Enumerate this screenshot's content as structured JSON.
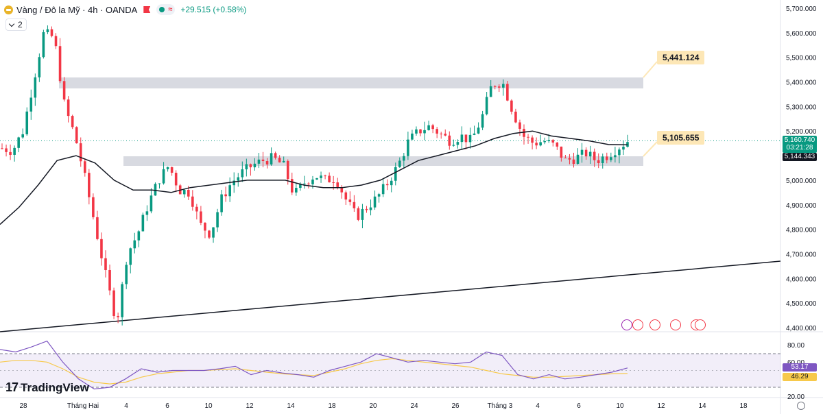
{
  "header": {
    "symbol_title": "Vàng / Đô la Mỹ · 4h · OANDA",
    "change": "+29.515 (+0.58%)",
    "approx_symbol": "≈",
    "indicator_count": "2"
  },
  "levels": {
    "upper_label": "5,441.124",
    "lower_label": "5,105.655"
  },
  "price_axis": {
    "ticks": [
      "5,700.000",
      "5,600.000",
      "5,500.000",
      "5,400.000",
      "5,300.000",
      "5,200.000",
      "5,100.000",
      "5,000.000",
      "4,900.000",
      "4,800.000",
      "4,700.000",
      "4,600.000",
      "4,500.000",
      "4,400.000"
    ],
    "current_price": "5,160.740",
    "countdown": "03:21:28",
    "ma_value": "5,144.343"
  },
  "rsi_axis": {
    "ticks": [
      "80.00",
      "60.00",
      "20.00"
    ],
    "rsi_value": "53.17",
    "rsi_ma_value": "46.29"
  },
  "time_axis": [
    "28",
    "Tháng Hai",
    "4",
    "6",
    "10",
    "12",
    "14",
    "18",
    "20",
    "24",
    "26",
    "Tháng 3",
    "4",
    "6",
    "10",
    "12",
    "14",
    "18"
  ],
  "branding": {
    "logo_mark": "17",
    "logo_text": "TradingView"
  },
  "colors": {
    "up": "#089981",
    "down": "#f23645",
    "ma": "#131722",
    "rsi": "#7e57c2",
    "rsi_ma": "#f7c94b",
    "label_bg": "#fde7b6"
  },
  "icons": [
    "gold-coin-icon",
    "flag-icon",
    "status-dot-icon",
    "settings-gear-icon",
    "bolt-event-icon",
    "us-flag-event-icon"
  ],
  "chart_data": {
    "type": "candlestick",
    "series": [
      {
        "name": "price",
        "ohlc_anchors": [
          5130,
          5120,
          5200,
          5400,
          5600,
          5580,
          5300,
          5180,
          5000,
          4800,
          4600,
          4420,
          4700,
          4780,
          4900,
          5000,
          5060,
          4960,
          4950,
          4820,
          4780,
          4920,
          4990,
          5030,
          5060,
          5080,
          5090,
          5060,
          4940,
          4990,
          5020,
          5000,
          5010,
          4920,
          4850,
          4890,
          4930,
          4990,
          5060,
          5160,
          5200,
          5220,
          5190,
          5160,
          5180,
          5160,
          5250,
          5390,
          5400,
          5280,
          5180,
          5150,
          5160,
          5140,
          5080,
          5090,
          5110,
          5080,
          5100,
          5130,
          5160
        ]
      },
      {
        "name": "ma",
        "values": [
          4820,
          4890,
          4980,
          5080,
          5100,
          5070,
          5000,
          4960,
          4960,
          4950,
          4970,
          4980,
          4990,
          5000,
          5000,
          5000,
          4980,
          4970,
          4970,
          4980,
          5000,
          5040,
          5080,
          5100,
          5120,
          5140,
          5170,
          5190,
          5200,
          5180,
          5170,
          5160,
          5145,
          5144
        ]
      }
    ],
    "ylim": [
      4380,
      5720
    ],
    "rsi": {
      "values": [
        75,
        72,
        78,
        85,
        60,
        40,
        28,
        30,
        40,
        52,
        48,
        50,
        50,
        50,
        52,
        55,
        45,
        50,
        47,
        45,
        42,
        50,
        55,
        60,
        70,
        65,
        60,
        62,
        60,
        58,
        60,
        72,
        68,
        45,
        40,
        45,
        40,
        42,
        45,
        48,
        53
      ],
      "ma_values": [
        60,
        62,
        62,
        60,
        52,
        42,
        36,
        34,
        36,
        42,
        46,
        48,
        50,
        50,
        51,
        52,
        50,
        48,
        46,
        45,
        44,
        48,
        52,
        58,
        62,
        64,
        62,
        60,
        58,
        56,
        54,
        50,
        46,
        44,
        42,
        42,
        43,
        44,
        45,
        46,
        46.29
      ],
      "ylim": [
        20,
        80
      ]
    }
  }
}
